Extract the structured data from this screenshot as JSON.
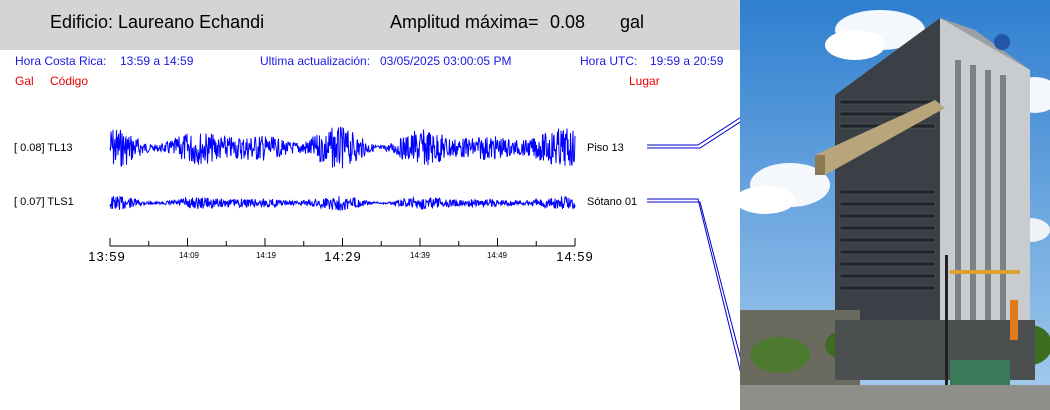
{
  "header": {
    "building_title": "Edificio: Laureano Echandi",
    "amplitude_label": "Amplitud máxima=",
    "amplitude_value": "0.08",
    "amplitude_unit": "gal"
  },
  "info": {
    "cr_time_label": "Hora Costa Rica:",
    "cr_time_value": "13:59 a 14:59",
    "last_update_label": "Ultima actualización:",
    "last_update_value": "03/05/2025 03:00:05 PM",
    "utc_label": "Hora UTC:",
    "utc_value": "19:59 a 20:59"
  },
  "columns": {
    "gal": "Gal",
    "code": "Código",
    "place": "Lugar"
  },
  "channels": [
    {
      "amplitude": "[   0.08] TL13",
      "place": "Piso 13",
      "max": 0.08
    },
    {
      "amplitude": "[   0.07] TLS1",
      "place": "Sótano 01",
      "max": 0.07
    }
  ],
  "time_axis": {
    "major": [
      "13:59",
      "14:29",
      "14:59"
    ],
    "minor": [
      "14:09",
      "14:19",
      "14:39",
      "14:49"
    ]
  },
  "colors": {
    "trace": "#0000ff",
    "info_text": "#1a1ae6",
    "column_text": "#e60000",
    "header_bg": "#d4d4d4"
  },
  "photo": {
    "icon": "building-photo"
  }
}
